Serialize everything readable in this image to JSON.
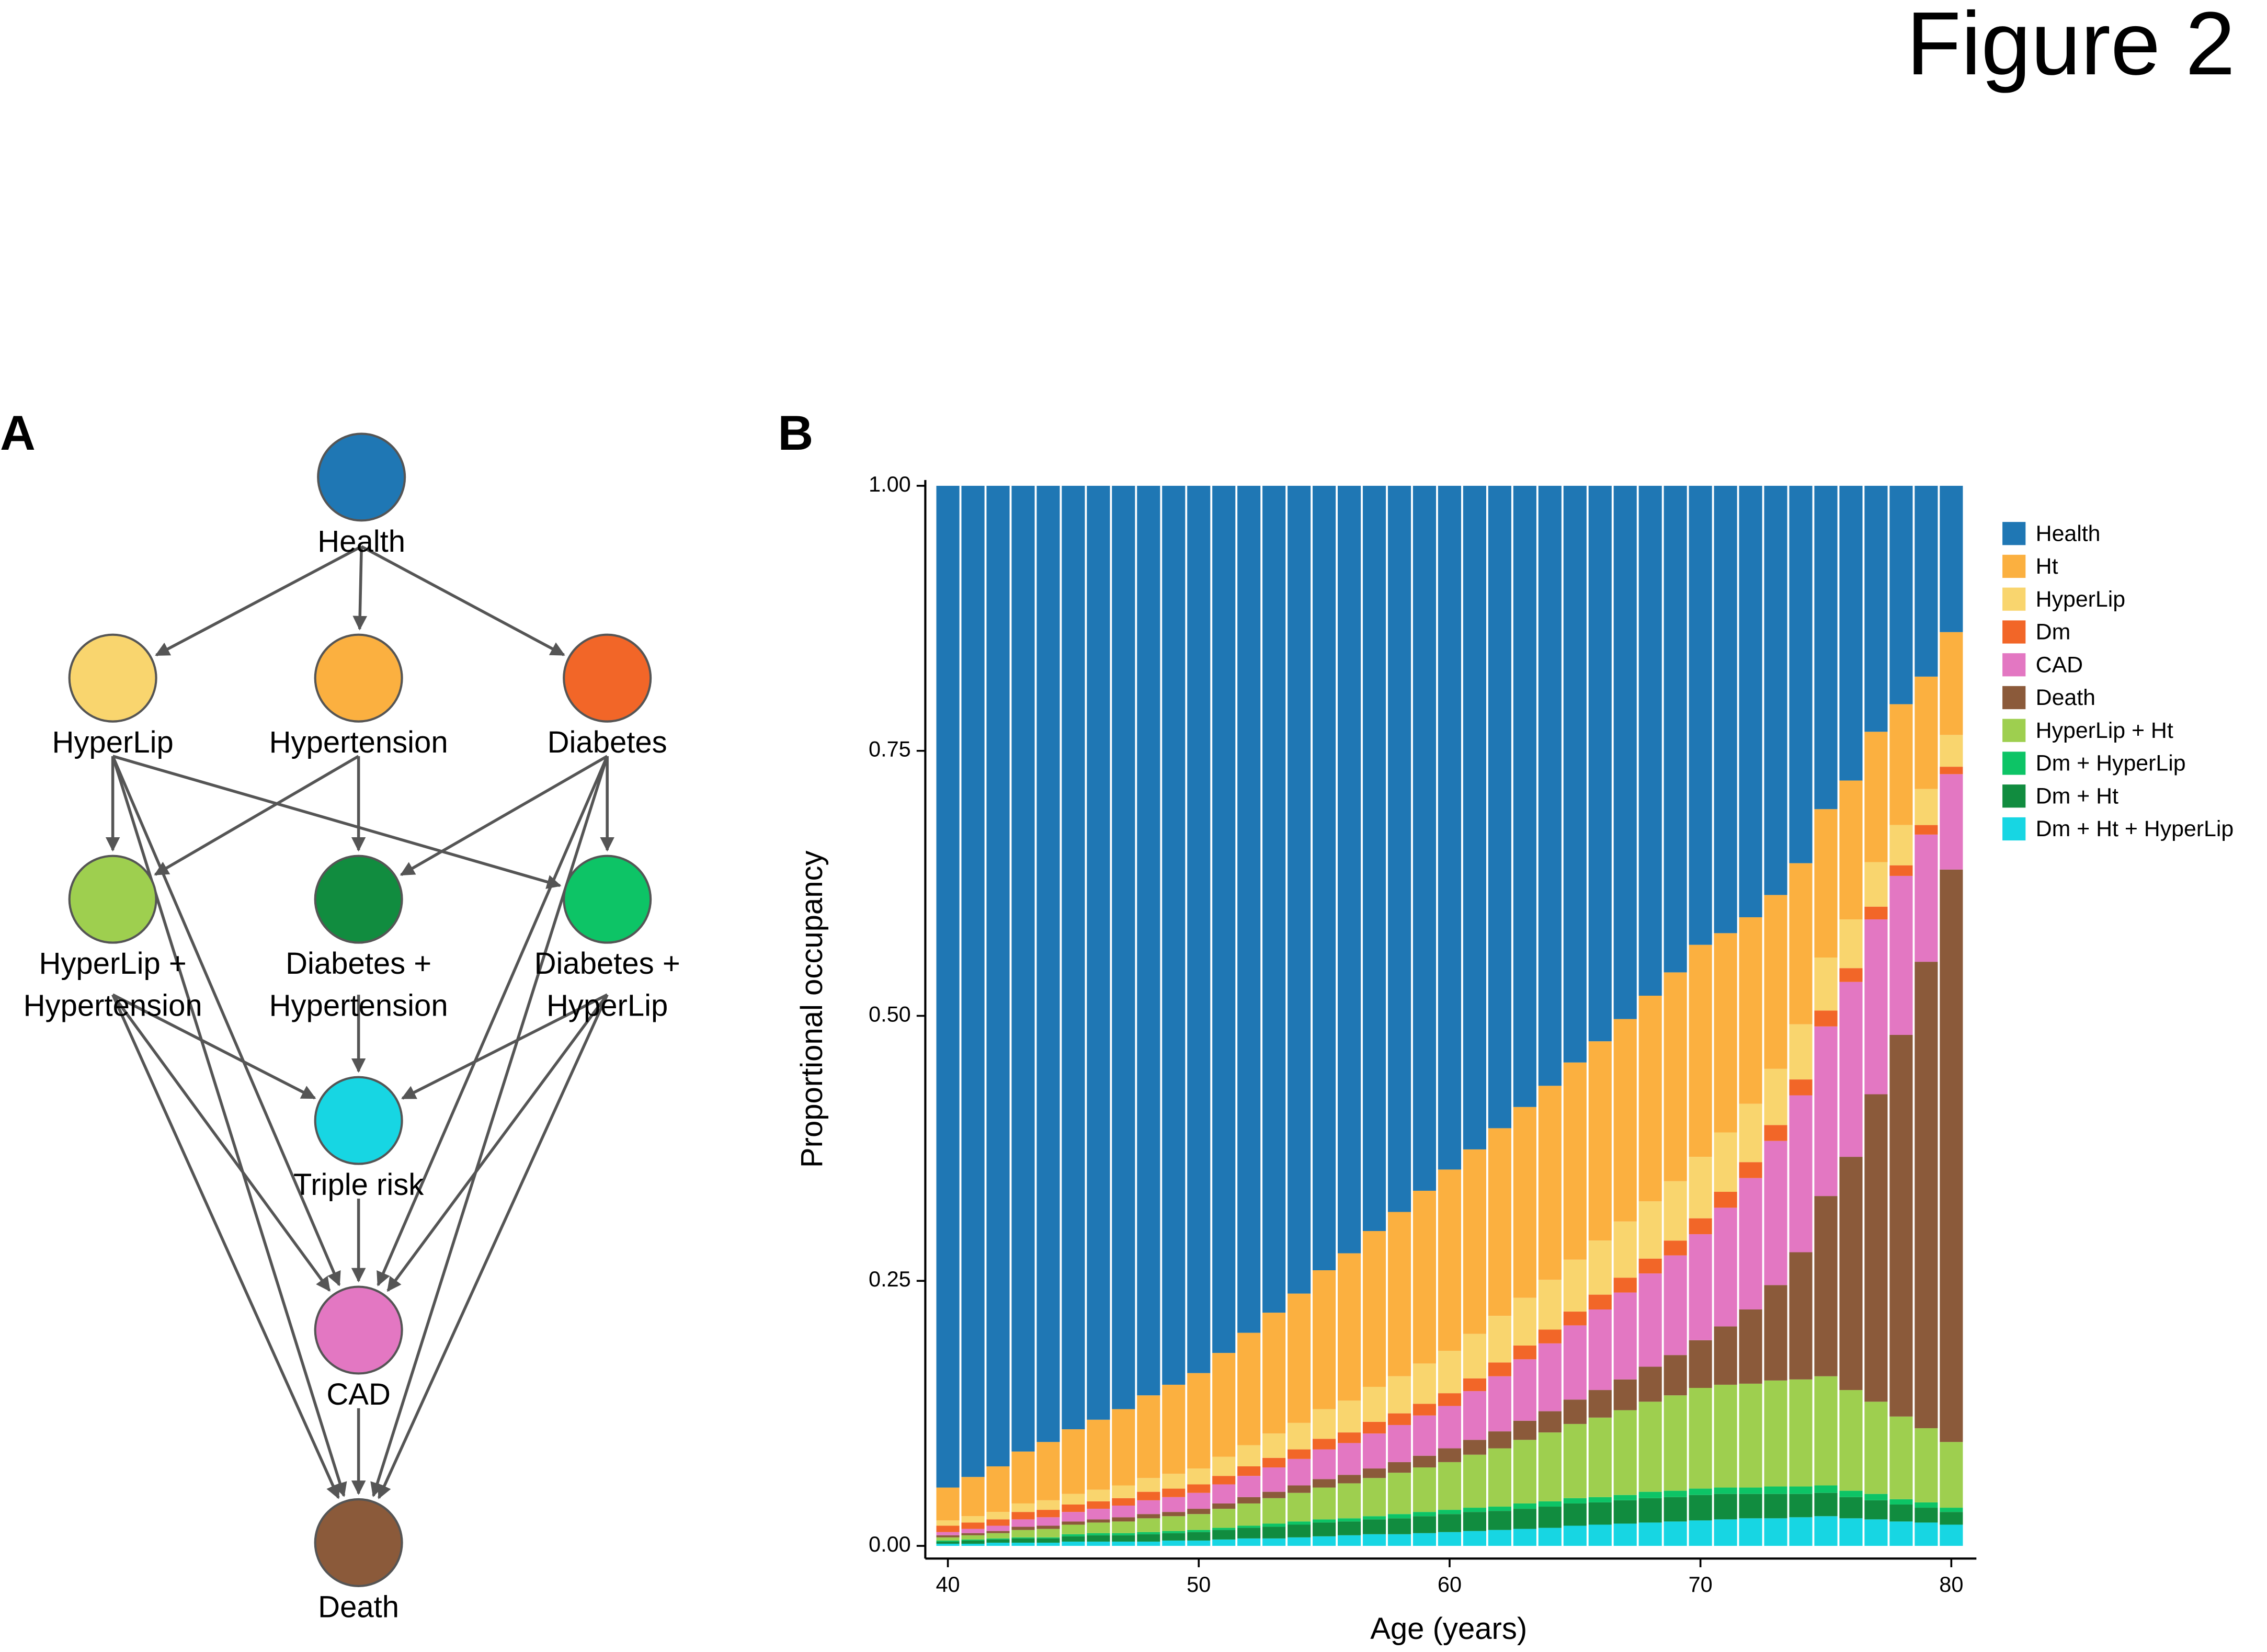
{
  "figure_title": "Figure 2",
  "panels": [
    "A",
    "B"
  ],
  "diagram": {
    "nodes": [
      {
        "label_lines": [
          "Health"
        ],
        "color": "#1f77b4"
      },
      {
        "label_lines": [
          "HyperLip"
        ],
        "color": "#f9d56e"
      },
      {
        "label_lines": [
          "Hypertension"
        ],
        "color": "#fbb040"
      },
      {
        "label_lines": [
          "Diabetes"
        ],
        "color": "#f26628"
      },
      {
        "label_lines": [
          "HyperLip +",
          "Hypertension"
        ],
        "color": "#9ecf4f"
      },
      {
        "label_lines": [
          "Diabetes +",
          "Hypertension"
        ],
        "color": "#118c3f"
      },
      {
        "label_lines": [
          "Diabetes +",
          "HyperLip"
        ],
        "color": "#0dc466"
      },
      {
        "label_lines": [
          "Triple risk"
        ],
        "color": "#17d6e3"
      },
      {
        "label_lines": [
          "CAD"
        ],
        "color": "#e377c2"
      },
      {
        "label_lines": [
          "Death"
        ],
        "color": "#8b5a3a"
      }
    ]
  },
  "chart_data": {
    "type": "bar",
    "stacked": true,
    "xlabel": "Age (years)",
    "ylabel": "Proportional occupancy",
    "x": [
      40,
      41,
      42,
      43,
      44,
      45,
      46,
      47,
      48,
      49,
      50,
      51,
      52,
      53,
      54,
      55,
      56,
      57,
      58,
      59,
      60,
      61,
      62,
      63,
      64,
      65,
      66,
      67,
      68,
      69,
      70,
      71,
      72,
      73,
      74,
      75,
      76,
      77,
      78,
      79,
      80
    ],
    "xlim": [
      39.1,
      81
    ],
    "xticks": [
      40,
      50,
      60,
      70,
      80
    ],
    "ylim": [
      -0.012,
      1
    ],
    "yticks": [
      {
        "value": 0,
        "label": "0.00"
      },
      {
        "value": 0.25,
        "label": "0.25"
      },
      {
        "value": 0.5,
        "label": "0.50"
      },
      {
        "value": 0.75,
        "label": "0.75"
      },
      {
        "value": 1,
        "label": "1.00"
      }
    ],
    "legend": "right",
    "series": [
      {
        "name": "Health",
        "color": "#1f77b4",
        "values": [
          0.945,
          0.935,
          0.925,
          0.911,
          0.902,
          0.89,
          0.881,
          0.871,
          0.858,
          0.848,
          0.837,
          0.818,
          0.799,
          0.78,
          0.762,
          0.74,
          0.724,
          0.703,
          0.685,
          0.665,
          0.645,
          0.626,
          0.606,
          0.586,
          0.566,
          0.544,
          0.524,
          0.503,
          0.481,
          0.459,
          0.433,
          0.422,
          0.407,
          0.386,
          0.356,
          0.305,
          0.278,
          0.232,
          0.206,
          0.18,
          0.138
        ]
      },
      {
        "name": "Ht",
        "color": "#fbb040",
        "values": [
          0.031,
          0.037,
          0.043,
          0.049,
          0.055,
          0.061,
          0.066,
          0.072,
          0.078,
          0.084,
          0.09,
          0.098,
          0.106,
          0.114,
          0.122,
          0.131,
          0.139,
          0.147,
          0.155,
          0.163,
          0.171,
          0.174,
          0.177,
          0.18,
          0.183,
          0.186,
          0.188,
          0.191,
          0.194,
          0.197,
          0.2,
          0.188,
          0.176,
          0.164,
          0.152,
          0.14,
          0.131,
          0.123,
          0.114,
          0.106,
          0.097
        ]
      },
      {
        "name": "HyperLip",
        "color": "#f9d56e",
        "values": [
          0.005,
          0.006,
          0.007,
          0.008,
          0.009,
          0.01,
          0.011,
          0.012,
          0.013,
          0.014,
          0.015,
          0.018,
          0.02,
          0.023,
          0.025,
          0.028,
          0.03,
          0.033,
          0.035,
          0.038,
          0.04,
          0.042,
          0.044,
          0.045,
          0.047,
          0.049,
          0.051,
          0.053,
          0.054,
          0.056,
          0.058,
          0.056,
          0.055,
          0.053,
          0.052,
          0.05,
          0.046,
          0.042,
          0.038,
          0.034,
          0.03
        ]
      },
      {
        "name": "Dm",
        "color": "#f26628",
        "values": [
          0.006,
          0.006,
          0.006,
          0.007,
          0.007,
          0.007,
          0.007,
          0.007,
          0.008,
          0.008,
          0.008,
          0.008,
          0.009,
          0.009,
          0.009,
          0.01,
          0.01,
          0.011,
          0.011,
          0.011,
          0.012,
          0.012,
          0.013,
          0.013,
          0.013,
          0.013,
          0.014,
          0.014,
          0.014,
          0.014,
          0.015,
          0.015,
          0.015,
          0.015,
          0.015,
          0.015,
          0.013,
          0.012,
          0.01,
          0.009,
          0.007
        ]
      },
      {
        "name": "CAD",
        "color": "#e377c2",
        "values": [
          0.003,
          0.004,
          0.005,
          0.007,
          0.008,
          0.009,
          0.01,
          0.011,
          0.013,
          0.014,
          0.015,
          0.018,
          0.02,
          0.023,
          0.025,
          0.028,
          0.03,
          0.033,
          0.035,
          0.038,
          0.04,
          0.046,
          0.052,
          0.058,
          0.064,
          0.07,
          0.076,
          0.082,
          0.088,
          0.094,
          0.1,
          0.112,
          0.124,
          0.136,
          0.148,
          0.16,
          0.165,
          0.165,
          0.15,
          0.12,
          0.09
        ]
      },
      {
        "name": "Death",
        "color": "#8b5a3a",
        "values": [
          0.002,
          0.002,
          0.002,
          0.003,
          0.003,
          0.003,
          0.003,
          0.004,
          0.004,
          0.004,
          0.005,
          0.005,
          0.006,
          0.006,
          0.007,
          0.008,
          0.008,
          0.009,
          0.01,
          0.011,
          0.013,
          0.014,
          0.016,
          0.018,
          0.02,
          0.023,
          0.026,
          0.029,
          0.033,
          0.038,
          0.045,
          0.055,
          0.07,
          0.09,
          0.12,
          0.17,
          0.22,
          0.29,
          0.36,
          0.44,
          0.54
        ]
      },
      {
        "name": "HyperLip + Ht",
        "color": "#9ecf4f",
        "values": [
          0.003,
          0.004,
          0.005,
          0.007,
          0.008,
          0.009,
          0.01,
          0.011,
          0.013,
          0.014,
          0.015,
          0.018,
          0.021,
          0.024,
          0.027,
          0.03,
          0.033,
          0.036,
          0.039,
          0.042,
          0.045,
          0.05,
          0.055,
          0.06,
          0.065,
          0.07,
          0.075,
          0.08,
          0.085,
          0.09,
          0.095,
          0.097,
          0.098,
          0.1,
          0.101,
          0.103,
          0.095,
          0.087,
          0.078,
          0.07,
          0.062
        ]
      },
      {
        "name": "Dm + HyperLip",
        "color": "#0dc466",
        "values": [
          0.001,
          0.001,
          0.001,
          0.001,
          0.001,
          0.002,
          0.002,
          0.002,
          0.002,
          0.002,
          0.002,
          0.002,
          0.002,
          0.003,
          0.003,
          0.003,
          0.003,
          0.003,
          0.004,
          0.004,
          0.004,
          0.004,
          0.004,
          0.005,
          0.005,
          0.005,
          0.005,
          0.005,
          0.006,
          0.006,
          0.006,
          0.006,
          0.006,
          0.007,
          0.007,
          0.007,
          0.006,
          0.006,
          0.005,
          0.005,
          0.004
        ]
      },
      {
        "name": "Dm + Ht",
        "color": "#118c3f",
        "values": [
          0.002,
          0.003,
          0.003,
          0.004,
          0.004,
          0.005,
          0.006,
          0.006,
          0.007,
          0.007,
          0.008,
          0.009,
          0.01,
          0.011,
          0.012,
          0.013,
          0.013,
          0.014,
          0.015,
          0.016,
          0.017,
          0.018,
          0.018,
          0.019,
          0.02,
          0.021,
          0.021,
          0.022,
          0.023,
          0.023,
          0.024,
          0.024,
          0.023,
          0.023,
          0.022,
          0.022,
          0.02,
          0.018,
          0.016,
          0.014,
          0.012
        ]
      },
      {
        "name": "Dm + Ht + HyperLip",
        "color": "#17d6e3",
        "values": [
          0.002,
          0.002,
          0.003,
          0.003,
          0.003,
          0.004,
          0.004,
          0.004,
          0.004,
          0.005,
          0.005,
          0.006,
          0.007,
          0.007,
          0.008,
          0.009,
          0.01,
          0.011,
          0.011,
          0.012,
          0.013,
          0.014,
          0.015,
          0.016,
          0.017,
          0.019,
          0.02,
          0.021,
          0.022,
          0.023,
          0.024,
          0.025,
          0.026,
          0.026,
          0.027,
          0.028,
          0.026,
          0.025,
          0.023,
          0.022,
          0.02
        ]
      }
    ]
  }
}
